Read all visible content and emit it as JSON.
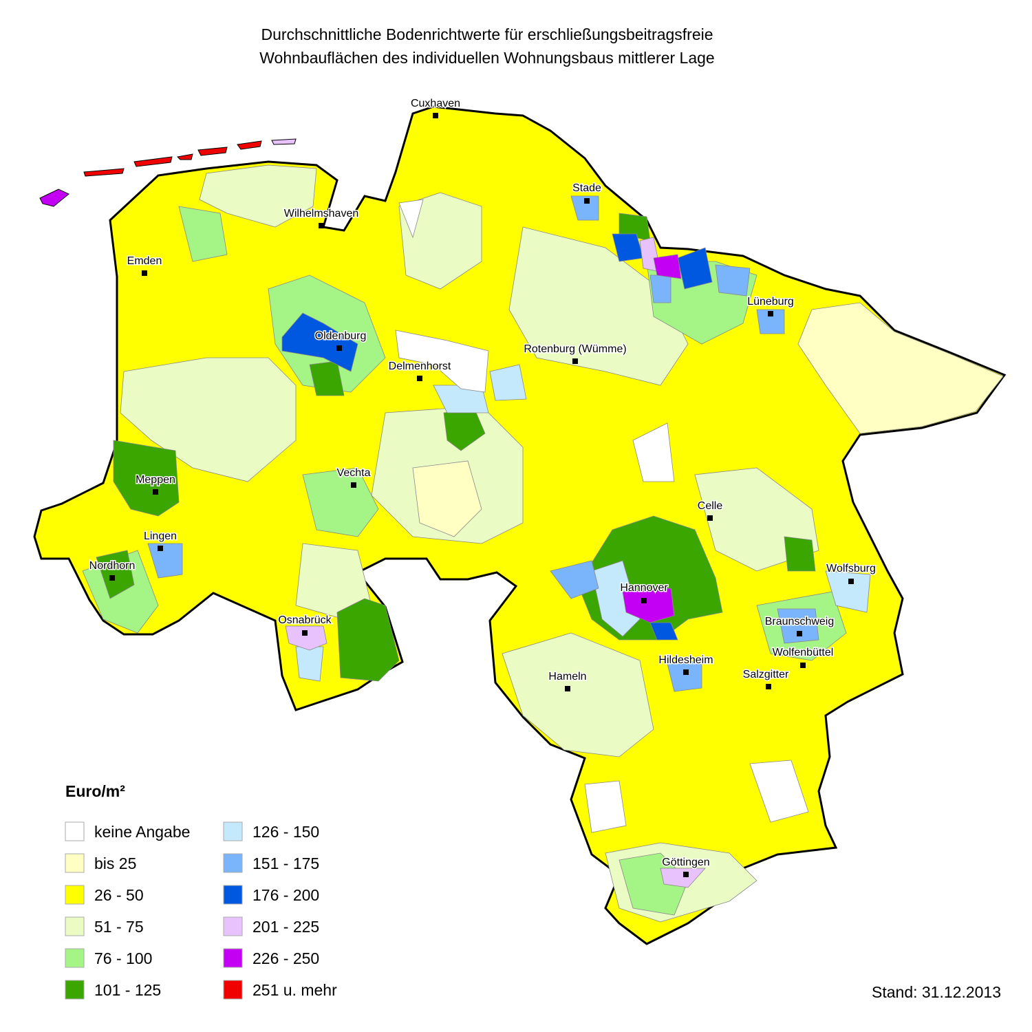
{
  "title": [
    "Durchschnittliche Bodenrichtwerte für erschließungsbeitragsfreie",
    "Wohnbauflächen des individuellen Wohnungsbaus mittlerer Lage"
  ],
  "cities": [
    "Cuxhaven",
    "Stade",
    "Wilhelmshaven",
    "Emden",
    "Lüneburg",
    "Oldenburg",
    "Rotenburg (Wümme)",
    "Delmenhorst",
    "Meppen",
    "Vechta",
    "Celle",
    "Lingen",
    "Nordhorn",
    "Wolfsburg",
    "Hannover",
    "Osnabrück",
    "Braunschweig",
    "Wolfenbüttel",
    "Hildesheim",
    "Salzgitter",
    "Hameln",
    "Göttingen"
  ],
  "legend": {
    "title": "Euro/m²",
    "items": [
      {
        "label": "keine Angabe",
        "color": "#ffffff"
      },
      {
        "label": "bis 25",
        "color": "#ffffc4"
      },
      {
        "label": "26 - 50",
        "color": "#ffff00"
      },
      {
        "label": "51 - 75",
        "color": "#eafcc4"
      },
      {
        "label": "76 - 100",
        "color": "#a4f486"
      },
      {
        "label": "101 - 125",
        "color": "#3ca600"
      },
      {
        "label": "126 - 150",
        "color": "#c4e8fc"
      },
      {
        "label": "151 - 175",
        "color": "#7ab4fa"
      },
      {
        "label": "176 - 200",
        "color": "#0058e0"
      },
      {
        "label": "201 - 225",
        "color": "#e8c2fc"
      },
      {
        "label": "226 - 250",
        "color": "#c400f4"
      },
      {
        "label": "251 u. mehr",
        "color": "#f00000"
      }
    ]
  },
  "stand": "Stand: 31.12.2013"
}
